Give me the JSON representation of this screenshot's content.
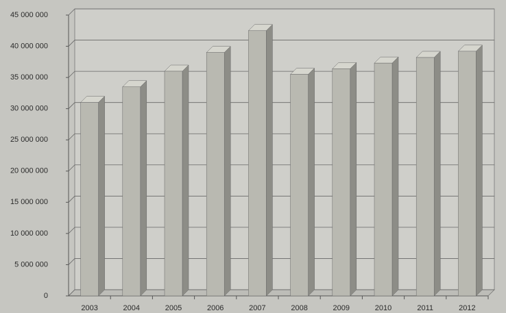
{
  "chart_data": {
    "type": "bar3d",
    "categories": [
      "2003",
      "2004",
      "2005",
      "2006",
      "2007",
      "2008",
      "2009",
      "2010",
      "2011",
      "2012"
    ],
    "values": [
      31000000,
      33500000,
      36000000,
      39000000,
      42500000,
      35500000,
      36400000,
      37300000,
      38200000,
      39200000
    ],
    "color": "#b9b9b1",
    "ylim": [
      0,
      45000000
    ],
    "yticks": [
      {
        "value": 0,
        "label": "0"
      },
      {
        "value": 5000000,
        "label": "5 000 000"
      },
      {
        "value": 10000000,
        "label": "10 000 000"
      },
      {
        "value": 15000000,
        "label": "15 000 000"
      },
      {
        "value": 20000000,
        "label": "20 000 000"
      },
      {
        "value": 25000000,
        "label": "25 000 000"
      },
      {
        "value": 30000000,
        "label": "30 000 000"
      },
      {
        "value": 35000000,
        "label": "35 000 000"
      },
      {
        "value": 40000000,
        "label": "40 000 000"
      },
      {
        "value": 45000000,
        "label": "45 000 000"
      }
    ],
    "grid": true
  }
}
